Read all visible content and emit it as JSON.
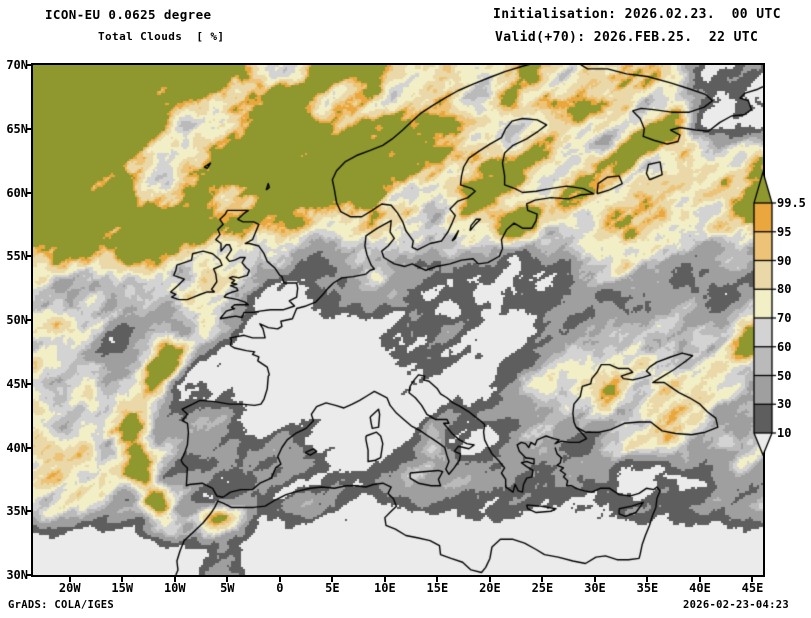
{
  "header": {
    "model": "ICON-EU 0.0625 degree",
    "field": "Total Clouds  [ %]",
    "init": "Initialisation: 2026.02.23.  00 UTC",
    "valid": "Valid(+70): 2026.FEB.25.  22 UTC"
  },
  "map": {
    "domain": {
      "lon_min": -23.5,
      "lon_max": 46.0,
      "lat_min": 30,
      "lat_max": 70
    },
    "lat_ticks": [
      {
        "label": "70N",
        "lat": 70
      },
      {
        "label": "65N",
        "lat": 65
      },
      {
        "label": "60N",
        "lat": 60
      },
      {
        "label": "55N",
        "lat": 55
      },
      {
        "label": "50N",
        "lat": 50
      },
      {
        "label": "45N",
        "lat": 45
      },
      {
        "label": "40N",
        "lat": 40
      },
      {
        "label": "35N",
        "lat": 35
      },
      {
        "label": "30N",
        "lat": 30
      }
    ],
    "lon_ticks": [
      {
        "label": "20W",
        "lon": -20
      },
      {
        "label": "15W",
        "lon": -15
      },
      {
        "label": "10W",
        "lon": -10
      },
      {
        "label": "5W",
        "lon": -5
      },
      {
        "label": "0",
        "lon": 0
      },
      {
        "label": "5E",
        "lon": 5
      },
      {
        "label": "10E",
        "lon": 10
      },
      {
        "label": "15E",
        "lon": 15
      },
      {
        "label": "20E",
        "lon": 20
      },
      {
        "label": "25E",
        "lon": 25
      },
      {
        "label": "30E",
        "lon": 30
      },
      {
        "label": "35E",
        "lon": 35
      },
      {
        "label": "40E",
        "lon": 40
      },
      {
        "label": "45E",
        "lon": 45
      }
    ]
  },
  "legend": {
    "unit": "%",
    "boundary_labels": [
      "99.5",
      "95",
      "90",
      "80",
      "70",
      "60",
      "50",
      "30",
      "10"
    ],
    "thresholds_ascending": [
      10,
      30,
      50,
      60,
      70,
      80,
      90,
      95,
      99.5
    ],
    "colors_top_to_bottom": [
      "#8e982f",
      "#e9a73d",
      "#edc377",
      "#ead8a8",
      "#f2eec6",
      "#d3d3d3",
      "#bababa",
      "#9f9f9f",
      "#5e5e5e",
      "#ebebeb"
    ]
  },
  "footer": {
    "left": "GrADS: COLA/IGES",
    "right": "2026-02-23-04:23"
  }
}
